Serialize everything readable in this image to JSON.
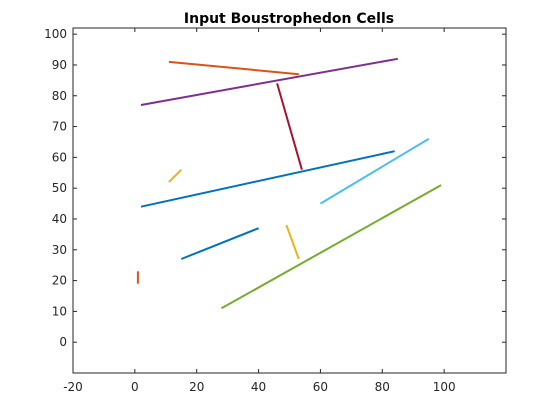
{
  "chart_data": {
    "type": "line",
    "title": "Input Boustrophedon Cells",
    "xlabel": "",
    "ylabel": "",
    "xlim": [
      -20,
      120
    ],
    "ylim": [
      -10,
      102
    ],
    "xticks": [
      -20,
      0,
      20,
      40,
      60,
      80,
      100
    ],
    "yticks": [
      0,
      10,
      20,
      30,
      40,
      50,
      60,
      70,
      80,
      90,
      100
    ],
    "grid": false,
    "box": true,
    "segments": [
      {
        "x": [
          11,
          53
        ],
        "y": [
          91,
          87
        ],
        "color": "#D95319"
      },
      {
        "x": [
          2,
          85
        ],
        "y": [
          77,
          92
        ],
        "color": "#7E2F8E"
      },
      {
        "x": [
          46,
          54
        ],
        "y": [
          84,
          56
        ],
        "color": "#A2142F"
      },
      {
        "x": [
          2,
          84
        ],
        "y": [
          44,
          62
        ],
        "color": "#0072BD"
      },
      {
        "x": [
          60,
          95
        ],
        "y": [
          45,
          66
        ],
        "color": "#4DBEEE"
      },
      {
        "x": [
          11,
          15
        ],
        "y": [
          52,
          56
        ],
        "color": "#EDB120"
      },
      {
        "x": [
          15,
          40
        ],
        "y": [
          27,
          37
        ],
        "color": "#0072BD"
      },
      {
        "x": [
          49,
          53
        ],
        "y": [
          38,
          27
        ],
        "color": "#EDB120"
      },
      {
        "x": [
          28,
          99
        ],
        "y": [
          11,
          51
        ],
        "color": "#77AC30"
      },
      {
        "x": [
          1,
          1
        ],
        "y": [
          19,
          23
        ],
        "color": "#D95319"
      }
    ]
  }
}
